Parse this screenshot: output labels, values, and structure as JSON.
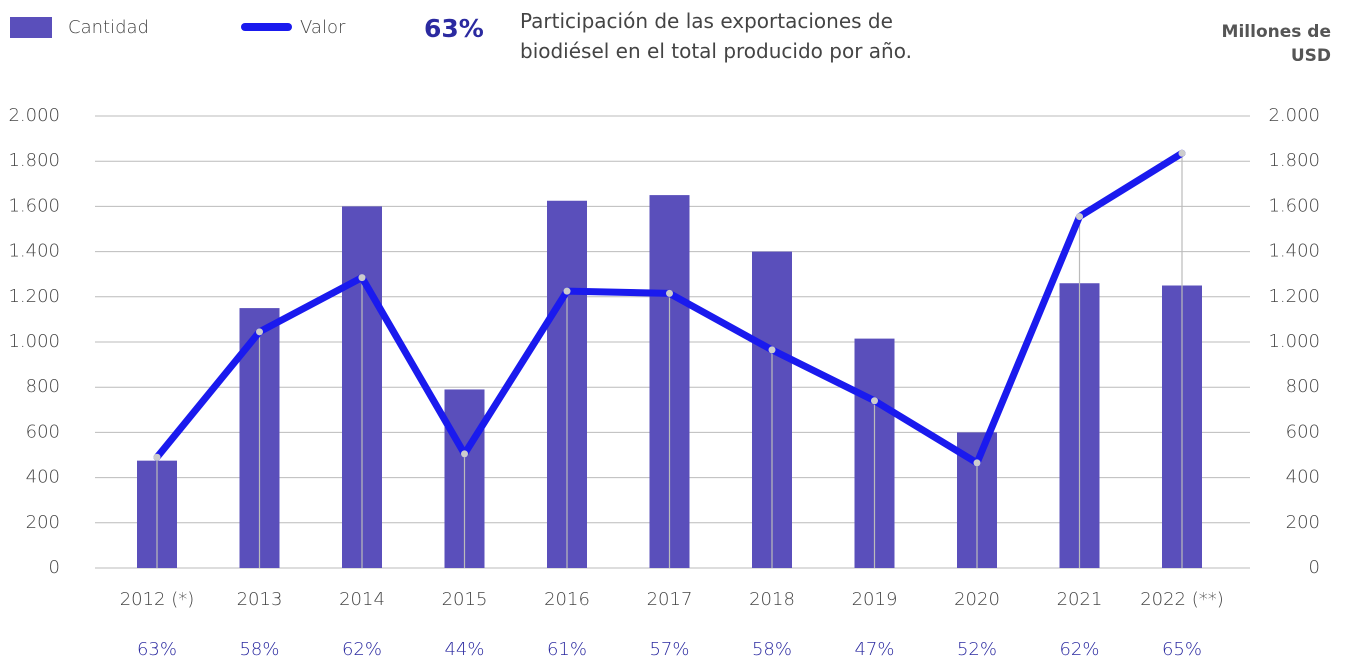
{
  "chart_data": {
    "type": "bar",
    "categories": [
      "2012 (*)",
      "2013",
      "2014",
      "2015",
      "2016",
      "2017",
      "2018",
      "2019",
      "2020",
      "2021",
      "2022 (**)"
    ],
    "series": [
      {
        "name": "Cantidad",
        "type": "bar",
        "color": "#5a4fbb",
        "values": [
          475,
          1150,
          1600,
          790,
          1625,
          1650,
          1400,
          1015,
          600,
          1260,
          1250
        ]
      },
      {
        "name": "Valor",
        "type": "line",
        "axis": "y2",
        "color": "#1a1aee",
        "values": [
          490,
          1045,
          1285,
          505,
          1225,
          1215,
          965,
          740,
          465,
          1555,
          1835
        ]
      }
    ],
    "shares": {
      "name": "Participación de las exportaciones de biodiésel en el total producido por año.",
      "color": "#2b2aa0",
      "values": [
        63,
        58,
        62,
        44,
        61,
        57,
        58,
        47,
        52,
        62,
        65
      ],
      "value_labels": [
        "63%",
        "58%",
        "62%",
        "44%",
        "61%",
        "57%",
        "58%",
        "47%",
        "52%",
        "62%",
        "65%"
      ]
    },
    "y2label": "Millones de USD",
    "ylim": [
      0,
      2000
    ],
    "yticks": [
      0,
      200,
      400,
      600,
      800,
      {
        "value": 1000,
        "label": "1.000"
      },
      {
        "value": 1200,
        "label": "1.200"
      },
      {
        "value": 1400,
        "label": "1.400"
      },
      {
        "value": 1600,
        "label": "1.600"
      },
      {
        "value": 1800,
        "label": "1.800"
      },
      {
        "value": 2000,
        "label": "2.000"
      }
    ],
    "y2lim": [
      0,
      2000
    ],
    "y2ticks": [
      0,
      200,
      400,
      600,
      800,
      {
        "value": 1000,
        "label": "1.000"
      },
      {
        "value": 1200,
        "label": "1.200"
      },
      {
        "value": 1400,
        "label": "1.400"
      },
      {
        "value": 1600,
        "label": "1.600"
      },
      {
        "value": 1800,
        "label": "1.800"
      },
      {
        "value": 2000,
        "label": "2.000"
      }
    ],
    "grid": true
  }
}
